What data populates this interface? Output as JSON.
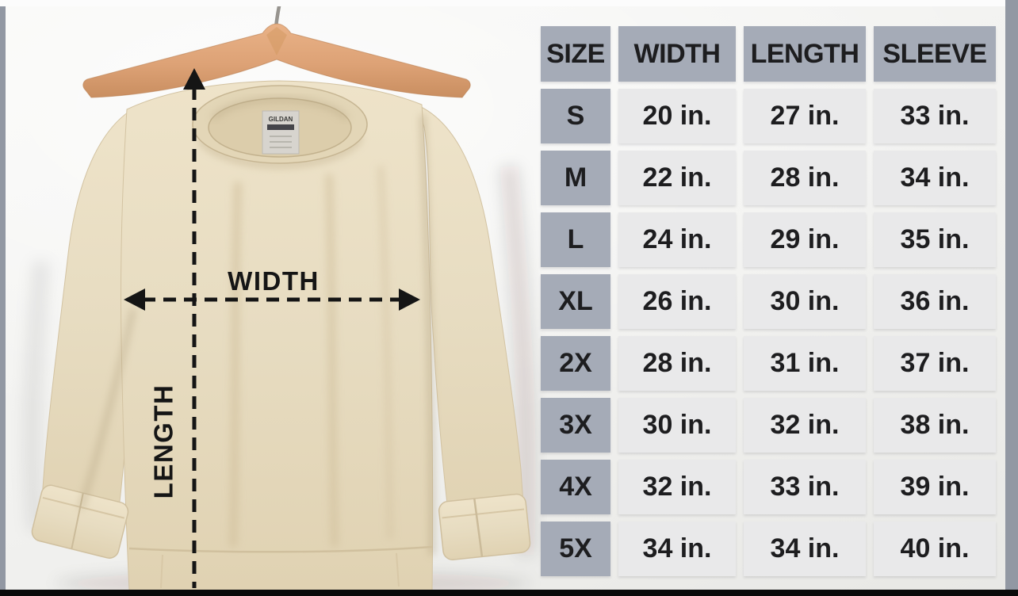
{
  "chart_data": {
    "type": "table",
    "columns": [
      "SIZE",
      "WIDTH",
      "LENGTH",
      "SLEEVE"
    ],
    "rows": [
      [
        "S",
        "20 in.",
        "27 in.",
        "33 in."
      ],
      [
        "M",
        "22 in.",
        "28 in.",
        "34 in."
      ],
      [
        "L",
        "24 in.",
        "29 in.",
        "35 in."
      ],
      [
        "XL",
        "26 in.",
        "30 in.",
        "36 in."
      ],
      [
        "2X",
        "28 in.",
        "31 in.",
        "37 in."
      ],
      [
        "3X",
        "30 in.",
        "32 in.",
        "38 in."
      ],
      [
        "4X",
        "32 in.",
        "33 in.",
        "39 in."
      ],
      [
        "5X",
        "34 in.",
        "34 in.",
        "40 in."
      ]
    ],
    "units": "in."
  },
  "photo": {
    "width_label": "WIDTH",
    "length_label": "LENGTH",
    "neck_tag_brand": "GILDAN"
  },
  "colors": {
    "header_cell": "#a5abb7",
    "data_cell": "#e9e9ea",
    "table_text": "#1d1d1f",
    "frame_side": "#9298a3",
    "frame_top": "#fcfcfc",
    "frame_bottom": "#0a0a0a",
    "annotation_ink": "#151515",
    "sweatshirt": "#e7dcc1",
    "sweatshirt_shade": "#d9c9a8",
    "hanger_wood": "#dfa97c"
  }
}
